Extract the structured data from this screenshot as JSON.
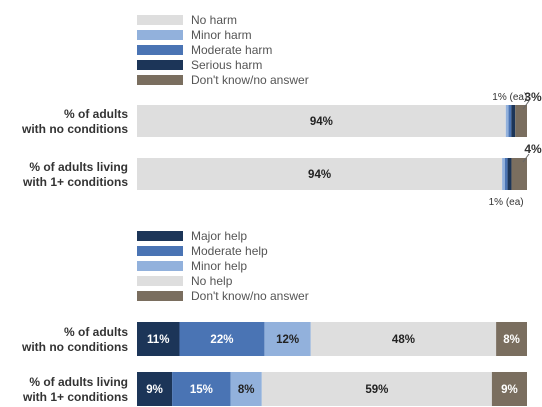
{
  "chart_data": [
    {
      "type": "bar",
      "orientation": "horizontal",
      "stacked": true,
      "categories": [
        "% of adults with no conditions",
        "% of adults living with 1+ conditions"
      ],
      "category_lines": [
        [
          "% of adults",
          "with no conditions"
        ],
        [
          "% of adults living",
          "with 1+ conditions"
        ]
      ],
      "legend_placement": "top",
      "series": [
        {
          "name": "No harm",
          "color": "#dedede",
          "values": [
            94,
            94
          ],
          "labels": [
            "94%",
            "94%"
          ]
        },
        {
          "name": "Minor harm",
          "color": "#92b1dc",
          "values": [
            0.7,
            0.7
          ],
          "labels": [
            "",
            ""
          ]
        },
        {
          "name": "Moderate harm",
          "color": "#4a74b4",
          "values": [
            0.7,
            0.7
          ],
          "labels": [
            "",
            ""
          ]
        },
        {
          "name": "Serious harm",
          "color": "#1c3558",
          "values": [
            1,
            1
          ],
          "labels": [
            "",
            ""
          ]
        },
        {
          "name": "Don't know/no answer",
          "color": "#7a6e5f",
          "values": [
            3,
            4
          ],
          "labels": [
            "",
            ""
          ]
        }
      ],
      "annotations": {
        "each_note": [
          "1% (ea)",
          "1% (ea)"
        ],
        "unknown_note": [
          "3%",
          "4%"
        ]
      }
    },
    {
      "type": "bar",
      "orientation": "horizontal",
      "stacked": true,
      "categories": [
        "% of adults with no conditions",
        "% of adults living with 1+ conditions"
      ],
      "category_lines": [
        [
          "% of adults",
          "with no conditions"
        ],
        [
          "% of adults living",
          "with 1+ conditions"
        ]
      ],
      "legend_placement": "top",
      "series": [
        {
          "name": "Major help",
          "color": "#1c3558",
          "values": [
            11,
            9
          ],
          "labels": [
            "11%",
            "9%"
          ]
        },
        {
          "name": "Moderate help",
          "color": "#4a74b4",
          "values": [
            22,
            15
          ],
          "labels": [
            "22%",
            "15%"
          ]
        },
        {
          "name": "Minor help",
          "color": "#92b1dc",
          "values": [
            12,
            8
          ],
          "labels": [
            "12%",
            "8%"
          ]
        },
        {
          "name": "No help",
          "color": "#dedede",
          "values": [
            48,
            59
          ],
          "labels": [
            "48%",
            "59%"
          ]
        },
        {
          "name": "Don't know/no answer",
          "color": "#7a6e5f",
          "values": [
            8,
            9
          ],
          "labels": [
            "8%",
            "9%"
          ]
        }
      ]
    }
  ]
}
